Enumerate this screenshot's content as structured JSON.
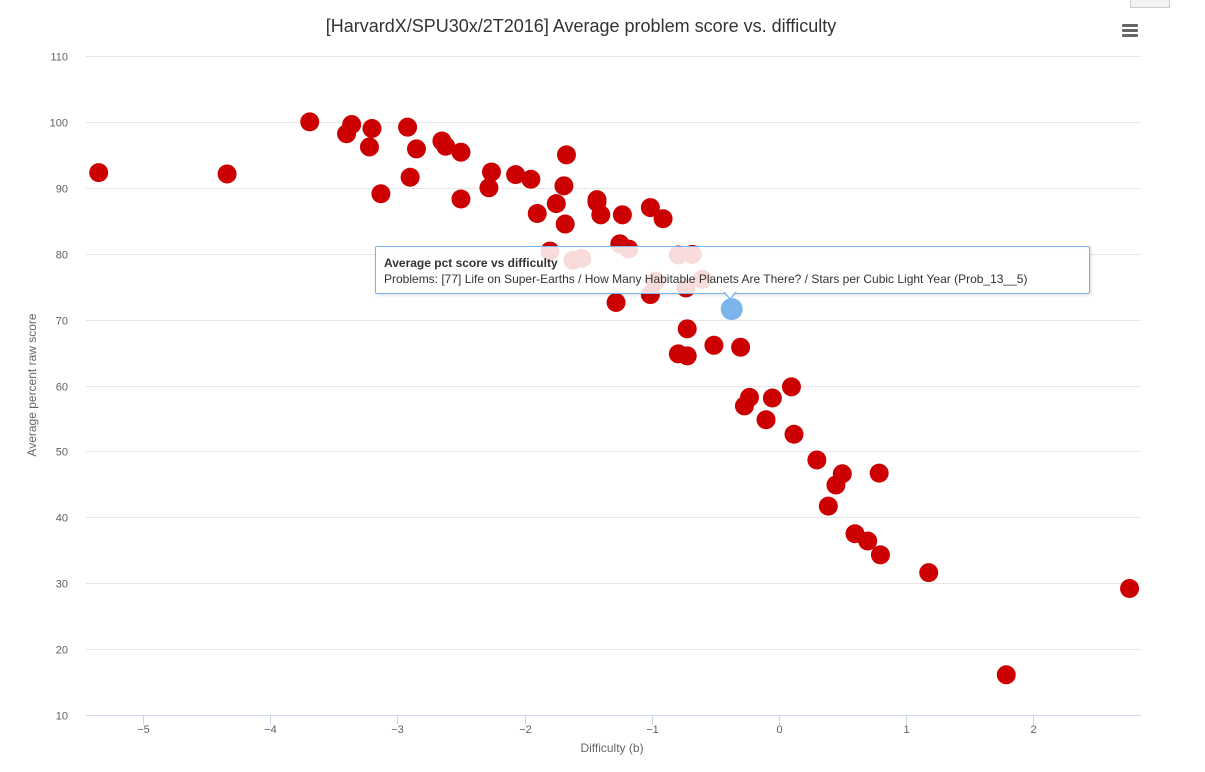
{
  "chart_data": {
    "type": "scatter",
    "title": "[HarvardX/SPU30x/2T2016] Average problem score vs. difficulty",
    "xlabel": "Difficulty (b)",
    "ylabel": "Average percent raw score",
    "xlim": [
      -5.45,
      2.85
    ],
    "ylim": [
      10,
      110
    ],
    "xticks": [
      -5,
      -4,
      -3,
      -2,
      -1,
      0,
      1,
      2
    ],
    "xtick_labels": [
      "−5",
      "−4",
      "−3",
      "−2",
      "−1",
      "0",
      "1",
      "2"
    ],
    "yticks": [
      10,
      20,
      30,
      40,
      50,
      60,
      70,
      80,
      90,
      100,
      110
    ],
    "grid": true,
    "legend": "none",
    "colors": {
      "point": "#cc0000",
      "highlight": "#7cb5ec",
      "grid": "#e6e6e6",
      "axis": "#ccd6eb"
    },
    "highlight": {
      "x": -0.37,
      "y": 71.6
    },
    "series": [
      {
        "points": [
          [
            -5.35,
            92.3
          ],
          [
            -4.34,
            92.1
          ],
          [
            -3.69,
            100.0
          ],
          [
            -3.36,
            99.6
          ],
          [
            -3.4,
            98.2
          ],
          [
            -3.2,
            99.0
          ],
          [
            -3.22,
            96.2
          ],
          [
            -2.92,
            99.2
          ],
          [
            -2.85,
            95.9
          ],
          [
            -3.13,
            89.1
          ],
          [
            -2.9,
            91.6
          ],
          [
            -2.65,
            97.1
          ],
          [
            -2.62,
            96.3
          ],
          [
            -2.5,
            95.4
          ],
          [
            -2.5,
            88.3
          ],
          [
            -2.26,
            92.4
          ],
          [
            -2.28,
            90.0
          ],
          [
            -2.07,
            92.0
          ],
          [
            -1.95,
            91.3
          ],
          [
            -1.9,
            86.1
          ],
          [
            -1.67,
            95.0
          ],
          [
            -1.69,
            90.3
          ],
          [
            -1.75,
            87.6
          ],
          [
            -1.68,
            84.5
          ],
          [
            -1.8,
            80.4
          ],
          [
            -1.62,
            79.0
          ],
          [
            -1.55,
            79.3
          ],
          [
            -1.43,
            88.2
          ],
          [
            -1.43,
            87.8
          ],
          [
            -1.4,
            85.9
          ],
          [
            -1.23,
            85.9
          ],
          [
            -1.25,
            81.5
          ],
          [
            -1.18,
            80.7
          ],
          [
            -1.01,
            87.0
          ],
          [
            -0.91,
            85.3
          ],
          [
            -0.79,
            79.8
          ],
          [
            -0.68,
            79.9
          ],
          [
            -0.97,
            75.8
          ],
          [
            -1.01,
            73.8
          ],
          [
            -0.73,
            74.8
          ],
          [
            -0.6,
            76.1
          ],
          [
            -1.28,
            72.6
          ],
          [
            -0.72,
            68.6
          ],
          [
            -0.79,
            64.8
          ],
          [
            -0.72,
            64.5
          ],
          [
            -0.51,
            66.1
          ],
          [
            -0.3,
            65.8
          ],
          [
            0.1,
            59.8
          ],
          [
            -0.23,
            58.2
          ],
          [
            -0.27,
            56.9
          ],
          [
            -0.05,
            58.1
          ],
          [
            -0.1,
            54.8
          ],
          [
            0.12,
            52.6
          ],
          [
            0.3,
            48.7
          ],
          [
            0.5,
            46.6
          ],
          [
            0.45,
            44.9
          ],
          [
            0.79,
            46.7
          ],
          [
            0.39,
            41.7
          ],
          [
            0.6,
            37.5
          ],
          [
            0.7,
            36.4
          ],
          [
            0.8,
            34.3
          ],
          [
            1.18,
            31.6
          ],
          [
            2.76,
            29.2
          ],
          [
            1.79,
            16.1
          ]
        ]
      }
    ]
  },
  "tooltip": {
    "title": "Average pct score vs difficulty",
    "body": "Problems: [77] Life on Super-Earths / How Many Habitable Planets Are There? / Stars per Cubic Light Year (Prob_13__5)"
  },
  "menu": {
    "icon": "hamburger-menu-icon"
  }
}
